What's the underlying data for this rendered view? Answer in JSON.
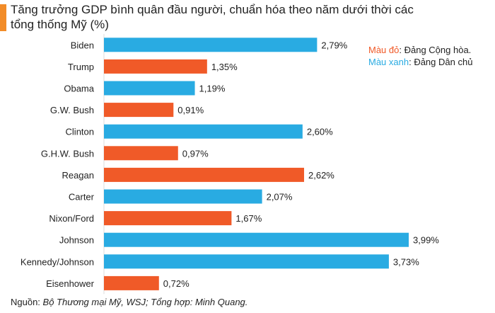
{
  "title": "Tăng trưởng GDP bình quân đầu người, chuẩn hóa theo năm dưới thời các tổng thống Mỹ (%)",
  "legend": {
    "rep_color_label": "Màu đỏ",
    "rep_text": ": Đảng Cộng hòa.",
    "dem_color_label": "Màu xanh",
    "dem_text": ": Đảng Dân chủ"
  },
  "source": {
    "label": "Nguồn: ",
    "text": "Bộ Thương mại Mỹ, WSJ; Tổng hợp: Minh Quang."
  },
  "colors": {
    "republican": "#f05a28",
    "democrat": "#29abe2"
  },
  "chart_data": {
    "type": "bar",
    "orientation": "horizontal",
    "xlim": [
      0,
      4.3
    ],
    "categories": [
      "Biden",
      "Trump",
      "Obama",
      "G.W. Bush",
      "Clinton",
      "G.H.W. Bush",
      "Reagan",
      "Carter",
      "Nixon/Ford",
      "Johnson",
      "Kennedy/Johnson",
      "Eisenhower"
    ],
    "values": [
      2.79,
      1.35,
      1.19,
      0.91,
      2.6,
      0.97,
      2.62,
      2.07,
      1.67,
      3.99,
      3.73,
      0.72
    ],
    "value_labels": [
      "2,79%",
      "1,35%",
      "1,19%",
      "0,91%",
      "2,60%",
      "0,97%",
      "2,62%",
      "2,07%",
      "1,67%",
      "3,99%",
      "3,73%",
      "0,72%"
    ],
    "party": [
      "democrat",
      "republican",
      "democrat",
      "republican",
      "democrat",
      "republican",
      "republican",
      "democrat",
      "republican",
      "democrat",
      "democrat",
      "republican"
    ]
  }
}
